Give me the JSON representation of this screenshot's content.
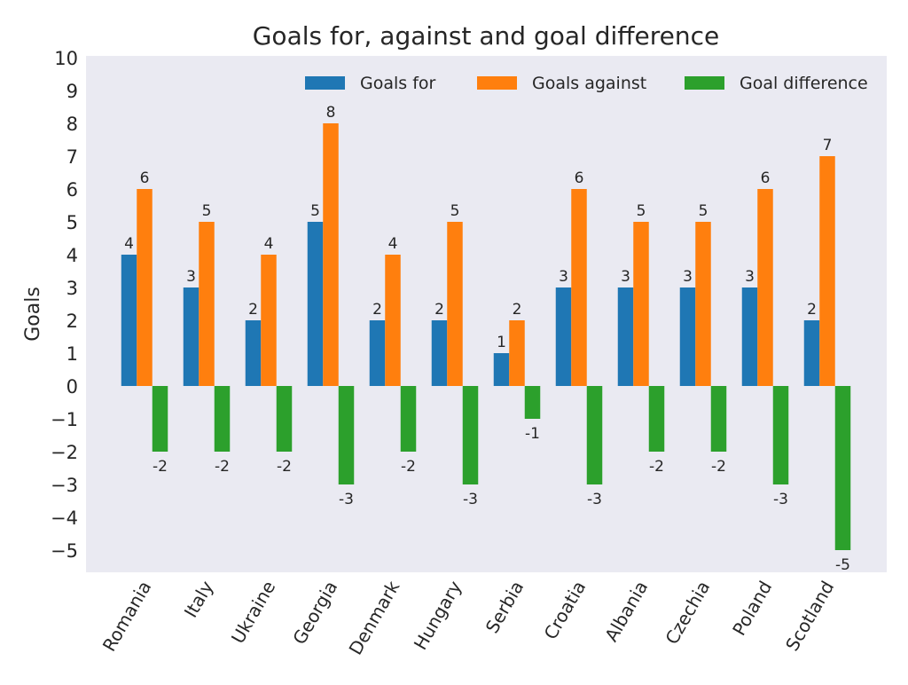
{
  "chart_data": {
    "type": "bar",
    "title": "Goals for, against and goal difference",
    "xlabel": "",
    "ylabel": "Goals",
    "ylim": [
      -5.7,
      10.05
    ],
    "yticks": [
      10,
      9,
      8,
      7,
      6,
      5,
      4,
      3,
      2,
      1,
      0,
      -1,
      -2,
      -3,
      -4,
      -5
    ],
    "grid": false,
    "legend_position": "top-right",
    "categories": [
      "Romania",
      "Italy",
      "Ukraine",
      "Georgia",
      "Denmark",
      "Hungary",
      "Serbia",
      "Croatia",
      "Albania",
      "Czechia",
      "Poland",
      "Scotland"
    ],
    "series": [
      {
        "name": "Goals for",
        "color": "#1f77b4",
        "values": [
          4,
          3,
          2,
          5,
          2,
          2,
          1,
          3,
          3,
          3,
          3,
          2
        ]
      },
      {
        "name": "Goals against",
        "color": "#ff7f0e",
        "values": [
          6,
          5,
          4,
          8,
          4,
          5,
          2,
          6,
          5,
          5,
          6,
          7
        ]
      },
      {
        "name": "Goal difference",
        "color": "#2ca02c",
        "values": [
          -2,
          -2,
          -2,
          -3,
          -2,
          -3,
          -1,
          -3,
          -2,
          -2,
          -3,
          -5
        ]
      }
    ]
  }
}
